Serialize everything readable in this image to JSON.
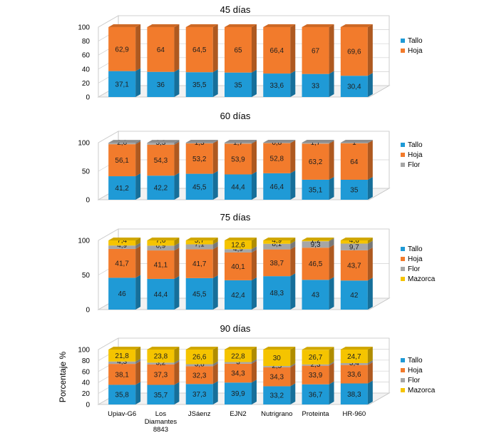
{
  "colors": {
    "Tallo": "#1f9ad6",
    "Hoja": "#f27b2c",
    "Flor": "#a6a6a6",
    "Mazorca": "#f5c400"
  },
  "categories": [
    "Upiav-G6",
    "Los Diamantes 8843",
    "JSáenz",
    "EJN2",
    "Nutrigrano",
    "Proteinta",
    "HR-960"
  ],
  "chart_data": [
    {
      "type": "bar",
      "stacked": true,
      "title": "45 días",
      "categories": [
        "Upiav-G6",
        "Los Diamantes 8843",
        "JSáenz",
        "EJN2",
        "Nutrigrano",
        "Proteinta",
        "HR-960"
      ],
      "yticks": [
        "0",
        "20",
        "40",
        "60",
        "80",
        "100"
      ],
      "ylim": [
        0,
        100
      ],
      "legend_position": "right",
      "series": [
        {
          "name": "Tallo",
          "values": [
            37.1,
            36,
            35.5,
            35,
            33.6,
            33,
            30.4
          ],
          "labels": [
            "37,1",
            "36",
            "35,5",
            "35",
            "33,6",
            "33",
            "30,4"
          ]
        },
        {
          "name": "Hoja",
          "values": [
            62.9,
            64,
            64.5,
            65,
            66.4,
            67,
            69.6
          ],
          "labels": [
            "62,9",
            "64",
            "64,5",
            "65",
            "66,4",
            "67",
            "69,6"
          ]
        }
      ]
    },
    {
      "type": "bar",
      "stacked": true,
      "title": "60 días",
      "categories": [
        "Upiav-G6",
        "Los Diamantes 8843",
        "JSáenz",
        "EJN2",
        "Nutrigrano",
        "Proteinta",
        "HR-960"
      ],
      "yticks": [
        "0",
        "50",
        "100"
      ],
      "ylim": [
        0,
        100
      ],
      "legend_position": "right",
      "series": [
        {
          "name": "Tallo",
          "values": [
            41.2,
            42.2,
            45.5,
            44.4,
            46.4,
            35.1,
            35
          ],
          "labels": [
            "41,2",
            "42,2",
            "45,5",
            "44,4",
            "46,4",
            "35,1",
            "35"
          ]
        },
        {
          "name": "Hoja",
          "values": [
            56.1,
            54.3,
            53.2,
            53.9,
            52.8,
            63.2,
            64
          ],
          "labels": [
            "56,1",
            "54,3",
            "53,2",
            "53,9",
            "52,8",
            "63,2",
            "64"
          ]
        },
        {
          "name": "Flor",
          "values": [
            2.6,
            3.3,
            1.3,
            1.7,
            0.8,
            1.7,
            1
          ],
          "labels": [
            "2,6",
            "3,3",
            "1,3",
            "1,7",
            "0,8",
            "1,7",
            "1"
          ]
        }
      ]
    },
    {
      "type": "bar",
      "stacked": true,
      "title": "75 días",
      "categories": [
        "Upiav-G6",
        "Los Diamantes 8843",
        "JSáenz",
        "EJN2",
        "Nutrigrano",
        "Proteinta",
        "HR-960"
      ],
      "yticks": [
        "0",
        "50",
        "100"
      ],
      "ylim": [
        0,
        100
      ],
      "legend_position": "right",
      "series": [
        {
          "name": "Tallo",
          "values": [
            46,
            44.4,
            45.5,
            42.4,
            48.3,
            43,
            42
          ],
          "labels": [
            "46",
            "44,4",
            "45,5",
            "42,4",
            "48,3",
            "43",
            "42"
          ]
        },
        {
          "name": "Hoja",
          "values": [
            41.7,
            41.1,
            41.7,
            40.1,
            38.7,
            46.5,
            43.7
          ],
          "labels": [
            "41,7",
            "41,1",
            "41,7",
            "40,1",
            "38,7",
            "46,5",
            "43,7"
          ]
        },
        {
          "name": "Flor",
          "values": [
            4.9,
            6.9,
            7.1,
            4.9,
            8.1,
            9.3,
            9.7
          ],
          "labels": [
            "4,9",
            "6,9",
            "7,1",
            "4,9",
            "8,1",
            "9,3",
            "9,7"
          ]
        },
        {
          "name": "Mazorca",
          "values": [
            7.4,
            7.6,
            5.7,
            12.6,
            4.9,
            1.2,
            4.6
          ],
          "labels": [
            "7,4",
            "7,6",
            "5,7",
            "12,6",
            "4,9",
            "1,2",
            "4,6"
          ]
        }
      ]
    },
    {
      "type": "bar",
      "stacked": true,
      "title": "90 días",
      "ylabel": "Porcentaje %",
      "categories": [
        "Upiav-G6",
        "Los Diamantes 8843",
        "JSáenz",
        "EJN2",
        "Nutrigrano",
        "Proteinta",
        "HR-960"
      ],
      "yticks": [
        "0",
        "20",
        "40",
        "60",
        "80",
        "100"
      ],
      "ylim": [
        0,
        100
      ],
      "legend_position": "right",
      "series": [
        {
          "name": "Tallo",
          "values": [
            35.8,
            35.7,
            37.3,
            39.9,
            33.2,
            36.7,
            38.3
          ],
          "labels": [
            "35,8",
            "35,7",
            "37,3",
            "39,9",
            "33,2",
            "36,7",
            "38,3"
          ]
        },
        {
          "name": "Hoja",
          "values": [
            38.1,
            37.3,
            32.3,
            34.3,
            34.3,
            33.9,
            33.6
          ],
          "labels": [
            "38,1",
            "37,3",
            "32,3",
            "34,3",
            "34,3",
            "33,9",
            "33,6"
          ]
        },
        {
          "name": "Flor",
          "values": [
            4.3,
            3.2,
            3.8,
            3,
            2.5,
            2.3,
            3.4
          ],
          "labels": [
            "4,3",
            "3,2",
            "3,8",
            "3",
            "2,5",
            "2,3",
            "3,4"
          ]
        },
        {
          "name": "Mazorca",
          "values": [
            21.8,
            23.8,
            26.6,
            22.8,
            30,
            26.7,
            24.7
          ],
          "labels": [
            "21,8",
            "23,8",
            "26,6",
            "22,8",
            "30",
            "26,7",
            "24,7"
          ]
        }
      ]
    }
  ]
}
